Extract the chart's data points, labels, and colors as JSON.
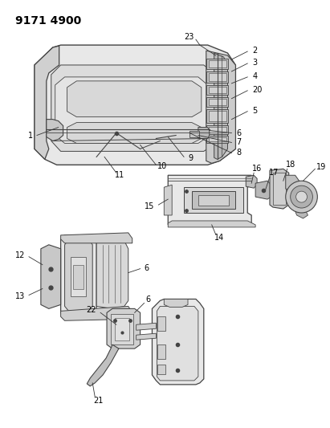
{
  "title": "9171 4900",
  "bg_color": "#ffffff",
  "fig_width": 4.11,
  "fig_height": 5.33,
  "dpi": 100,
  "lc": "#444444",
  "lc_thin": "#666666",
  "fc_light": "#e8e8e8",
  "fc_mid": "#d0d0d0",
  "fc_dark": "#b8b8b8",
  "label_fs": 7.0,
  "title_fs": 10
}
